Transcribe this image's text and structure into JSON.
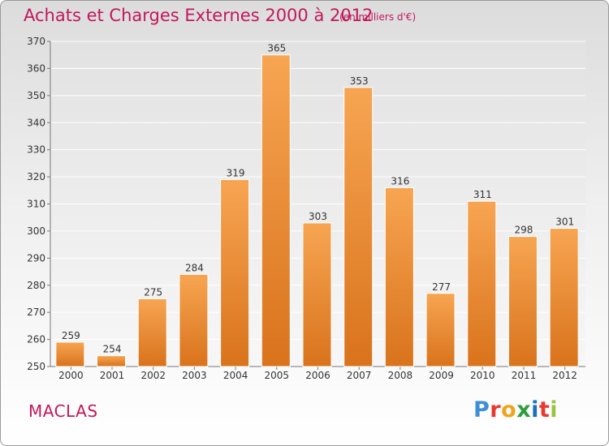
{
  "header": {
    "title": "Achats et Charges Externes 2000 à 2012",
    "subtitle": "(en milliers d'€)"
  },
  "footer": {
    "place": "MACLAS",
    "brand": {
      "text": "Proxiti",
      "letter_colors": [
        "#3d8fd6",
        "#e8382f",
        "#f2a31b",
        "#2e9d3c",
        "#1b6fc2",
        "#e8382f",
        "#9ac23c"
      ]
    }
  },
  "colors": {
    "bar_top": "#f7a552",
    "bar_bottom": "#d9731c",
    "title": "#c2185b"
  },
  "chart_data": {
    "type": "bar",
    "title": "Achats et Charges Externes 2000 à 2012",
    "subtitle": "(en milliers d'€)",
    "categories": [
      "2000",
      "2001",
      "2002",
      "2003",
      "2004",
      "2005",
      "2006",
      "2007",
      "2008",
      "2009",
      "2010",
      "2011",
      "2012"
    ],
    "values": [
      259,
      254,
      275,
      284,
      319,
      365,
      303,
      353,
      316,
      277,
      311,
      298,
      301
    ],
    "ylim": [
      250,
      370
    ],
    "yticks": [
      250,
      260,
      270,
      280,
      290,
      300,
      310,
      320,
      330,
      340,
      350,
      360,
      370
    ],
    "grid": true,
    "legend": "none"
  }
}
